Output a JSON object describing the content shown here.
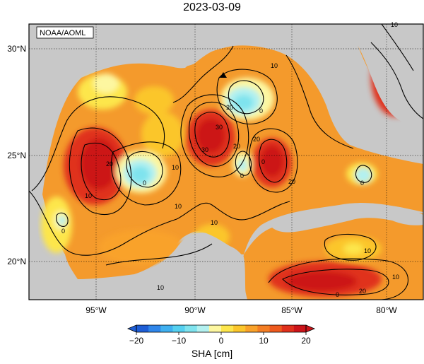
{
  "title": "2023-03-09",
  "source_label": "NOAA/AOML",
  "lat_ticks": [
    "30°N",
    "25°N",
    "20°N"
  ],
  "lon_ticks": [
    "95°W",
    "90°W",
    "85°W",
    "80°W"
  ],
  "contour_labels": [
    "10",
    "0",
    "10",
    "0",
    "20",
    "10",
    "0",
    "30",
    "20",
    "10",
    "20",
    "0",
    "20",
    "0",
    "10",
    "0",
    "20",
    "30",
    "10",
    "0",
    "10",
    "10",
    "20",
    "10"
  ],
  "colorbar": {
    "label": "SHA [cm]",
    "ticks": [
      "-20",
      "-10",
      "0",
      "10",
      "20"
    ],
    "min": -20,
    "max": 20,
    "colors": [
      "#1e5ed6",
      "#2f86ea",
      "#3fb0f0",
      "#55d0f0",
      "#7fe3ee",
      "#b3f1f0",
      "#fdf7a0",
      "#fde64c",
      "#fbc62c",
      "#f9a22a",
      "#f47e24",
      "#ee5a1e",
      "#e0301c",
      "#cc1419"
    ]
  },
  "colors": {
    "land": "#c8c8c8",
    "ocean_base": "#f49a2c",
    "marker": "#000000"
  }
}
